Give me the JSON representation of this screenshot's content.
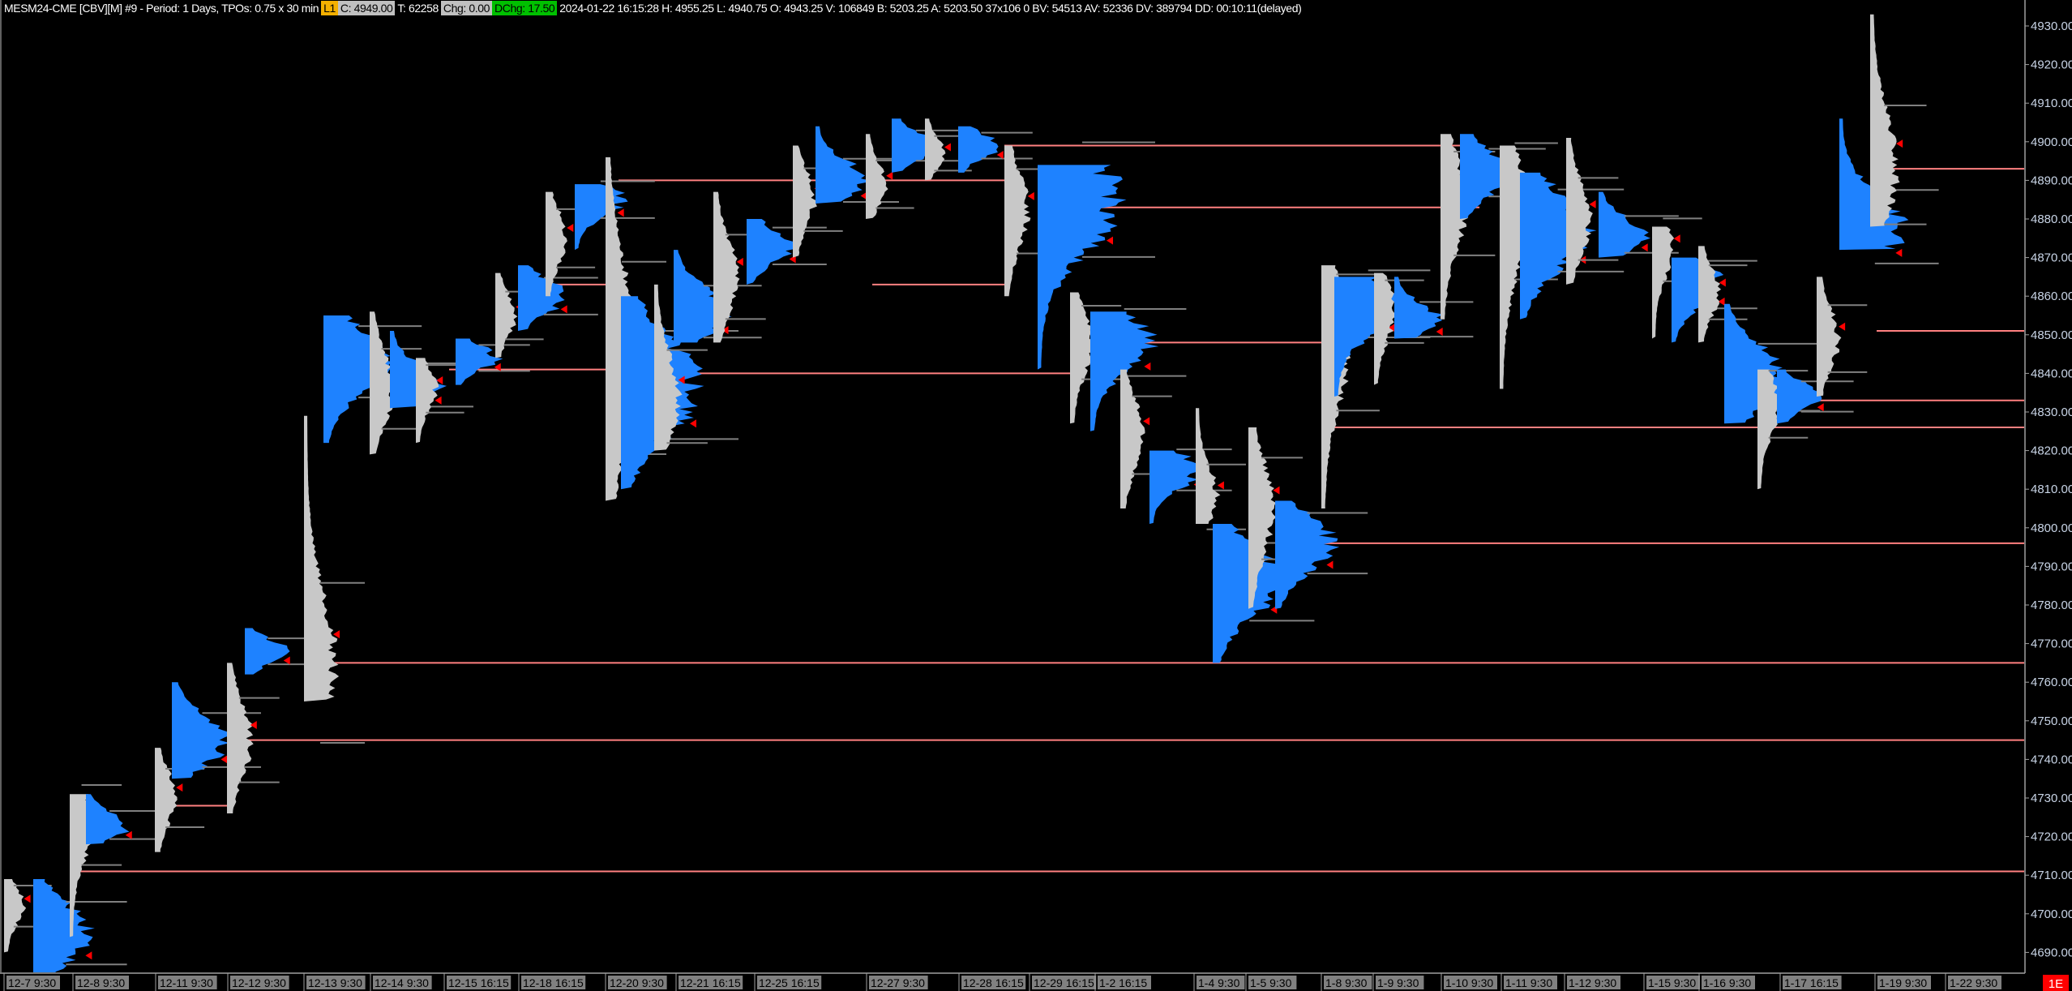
{
  "header": {
    "title": "MESM24-CME [CBV][M] #9 - Period: 1 Days, TPOs: 0.75 x 30 min",
    "badge": "L1",
    "close": "C: 4949.00",
    "trades": "T: 62258",
    "chg": "Chg: 0.00",
    "dchg": "DChg: 17.50",
    "details": "2024-01-22 16:15:28 H: 4955.25 L: 4940.75 O: 4943.25 V: 106849 B: 5203.25 A: 5203.50 37x106 0 BV: 54513 AV: 52336 DV: 389794 DD: 00:10:11(delayed)"
  },
  "colors": {
    "background": "#000000",
    "rth_profile": "#1e82ff",
    "eth_profile": "#c8c8c8",
    "naked_poc_line": "#ff8080",
    "value_area_line": "#808080",
    "marker": "#ff0000",
    "axis_text": "#c8d4e6",
    "time_label_bg": "#808080"
  },
  "chart_data": {
    "type": "market-profile",
    "symbol": "MESM24-CME",
    "ylim": [
      4685,
      4935
    ],
    "y_ticks": [
      "4930.00",
      "4920.00",
      "4910.00",
      "4900.00",
      "4890.00",
      "4880.00",
      "4870.00",
      "4860.00",
      "4850.00",
      "4840.00",
      "4830.00",
      "4820.00",
      "4810.00",
      "4800.00",
      "4790.00",
      "4780.00",
      "4770.00",
      "4760.00",
      "4750.00",
      "4740.00",
      "4730.00",
      "4720.00",
      "4710.00",
      "4700.00",
      "4690.00"
    ],
    "x_labels": [
      "12-7  9:30",
      "12-8  9:30",
      "12-11  9:30",
      "12-12  9:30",
      "12-13  9:30",
      "12-14  9:30",
      "12-15  16:15",
      "12-18  16:15",
      "12-20  9:30",
      "12-21  16:15",
      "12-25  16:15",
      "12-27  9:30",
      "12-28  16:15",
      "12-29  16:15",
      "1-2  16:15",
      "1-4  9:30",
      "1-5  9:30",
      "1-8  9:30",
      "1-9  9:30",
      "1-10  9:30",
      "1-11  9:30",
      "1-12  9:30",
      "1-15  9:30",
      "1-16  9:30",
      "1-17  16:15",
      "1-19  9:30",
      "1-22  9:30"
    ],
    "profiles": [
      {
        "type": "ETH",
        "high": 4709,
        "low": 4690,
        "poc": 4702
      },
      {
        "type": "RTH",
        "high": 4709,
        "low": 4680,
        "poc": 4695
      },
      {
        "type": "ETH",
        "high": 4731,
        "low": 4694,
        "poc": 4723
      },
      {
        "type": "RTH",
        "high": 4731,
        "low": 4718,
        "poc": 4723
      },
      {
        "type": "ETH",
        "high": 4743,
        "low": 4716,
        "poc": 4730
      },
      {
        "type": "RTH",
        "high": 4760,
        "low": 4735,
        "poc": 4745
      },
      {
        "type": "ETH",
        "high": 4765,
        "low": 4726,
        "poc": 4745
      },
      {
        "type": "RTH",
        "high": 4774,
        "low": 4762,
        "poc": 4768
      },
      {
        "type": "ETH",
        "high": 4829,
        "low": 4755,
        "poc": 4765
      },
      {
        "type": "RTH",
        "high": 4855,
        "low": 4822,
        "poc": 4843
      },
      {
        "type": "ETH",
        "high": 4856,
        "low": 4819,
        "poc": 4836
      },
      {
        "type": "RTH",
        "high": 4851,
        "low": 4831,
        "poc": 4837
      },
      {
        "type": "ETH",
        "high": 4844,
        "low": 4822,
        "poc": 4836
      },
      {
        "type": "RTH",
        "high": 4849,
        "low": 4837,
        "poc": 4844
      },
      {
        "type": "ETH",
        "high": 4866,
        "low": 4844,
        "poc": 4855
      },
      {
        "type": "RTH",
        "high": 4868,
        "low": 4851,
        "poc": 4860
      },
      {
        "type": "ETH",
        "high": 4887,
        "low": 4860,
        "poc": 4875
      },
      {
        "type": "RTH",
        "high": 4889,
        "low": 4872,
        "poc": 4885
      },
      {
        "type": "ETH",
        "high": 4896,
        "low": 4807,
        "poc": 4844
      },
      {
        "type": "RTH",
        "high": 4860,
        "low": 4810,
        "poc": 4837
      },
      {
        "type": "ETH",
        "high": 4863,
        "low": 4820,
        "poc": 4834
      },
      {
        "type": "RTH",
        "high": 4872,
        "low": 4848,
        "poc": 4856
      },
      {
        "type": "ETH",
        "high": 4887,
        "low": 4848,
        "poc": 4865
      },
      {
        "type": "RTH",
        "high": 4880,
        "low": 4863,
        "poc": 4873
      },
      {
        "type": "ETH",
        "high": 4899,
        "low": 4870,
        "poc": 4885
      },
      {
        "type": "RTH",
        "high": 4904,
        "low": 4884,
        "poc": 4890
      },
      {
        "type": "ETH",
        "high": 4902,
        "low": 4880,
        "poc": 4889
      },
      {
        "type": "RTH",
        "high": 4906,
        "low": 4892,
        "poc": 4899
      },
      {
        "type": "ETH",
        "high": 4906,
        "low": 4890,
        "poc": 4897
      },
      {
        "type": "RTH",
        "high": 4904,
        "low": 4892,
        "poc": 4899
      },
      {
        "type": "ETH",
        "high": 4899,
        "low": 4860,
        "poc": 4882
      },
      {
        "type": "RTH",
        "high": 4894,
        "low": 4841,
        "poc": 4885
      },
      {
        "type": "ETH",
        "high": 4861,
        "low": 4827,
        "poc": 4848
      },
      {
        "type": "RTH",
        "high": 4856,
        "low": 4825,
        "poc": 4848
      },
      {
        "type": "ETH",
        "high": 4841,
        "low": 4805,
        "poc": 4824
      },
      {
        "type": "RTH",
        "high": 4820,
        "low": 4801,
        "poc": 4815
      },
      {
        "type": "ETH",
        "high": 4831,
        "low": 4801,
        "poc": 4808
      },
      {
        "type": "RTH",
        "high": 4801,
        "low": 4765,
        "poc": 4786
      },
      {
        "type": "ETH",
        "high": 4826,
        "low": 4779,
        "poc": 4805
      },
      {
        "type": "RTH",
        "high": 4807,
        "low": 4779,
        "poc": 4796
      },
      {
        "type": "ETH",
        "high": 4868,
        "low": 4805,
        "poc": 4848
      },
      {
        "type": "RTH",
        "high": 4865,
        "low": 4834,
        "poc": 4858
      },
      {
        "type": "ETH",
        "high": 4866,
        "low": 4837,
        "poc": 4856
      },
      {
        "type": "RTH",
        "high": 4865,
        "low": 4849,
        "poc": 4854
      },
      {
        "type": "ETH",
        "high": 4902,
        "low": 4854,
        "poc": 4884
      },
      {
        "type": "RTH",
        "high": 4902,
        "low": 4880,
        "poc": 4892
      },
      {
        "type": "ETH",
        "high": 4899,
        "low": 4836,
        "poc": 4882
      },
      {
        "type": "RTH",
        "high": 4892,
        "low": 4854,
        "poc": 4877
      },
      {
        "type": "ETH",
        "high": 4901,
        "low": 4863,
        "poc": 4880
      },
      {
        "type": "RTH",
        "high": 4887,
        "low": 4870,
        "poc": 4876
      },
      {
        "type": "ETH",
        "high": 4878,
        "low": 4849,
        "poc": 4872
      },
      {
        "type": "RTH",
        "high": 4870,
        "low": 4848,
        "poc": 4863
      },
      {
        "type": "ETH",
        "high": 4873,
        "low": 4848,
        "poc": 4861
      },
      {
        "type": "RTH",
        "high": 4858,
        "low": 4827,
        "poc": 4839
      },
      {
        "type": "ETH",
        "high": 4841,
        "low": 4810,
        "poc": 4832
      },
      {
        "type": "RTH",
        "high": 4841,
        "low": 4827,
        "poc": 4834
      },
      {
        "type": "ETH",
        "high": 4865,
        "low": 4834,
        "poc": 4849
      },
      {
        "type": "RTH",
        "high": 4906,
        "low": 4872,
        "poc": 4878
      },
      {
        "type": "ETH",
        "high": 4933,
        "low": 4878,
        "poc": 4894
      }
    ],
    "naked_pocs": [
      4711,
      4745,
      4765,
      4796,
      4826,
      4833,
      4851,
      4893,
      4899,
      4890,
      4883,
      4863,
      4863,
      4848,
      4841,
      4840,
      4728
    ]
  },
  "status_badge": "1E"
}
